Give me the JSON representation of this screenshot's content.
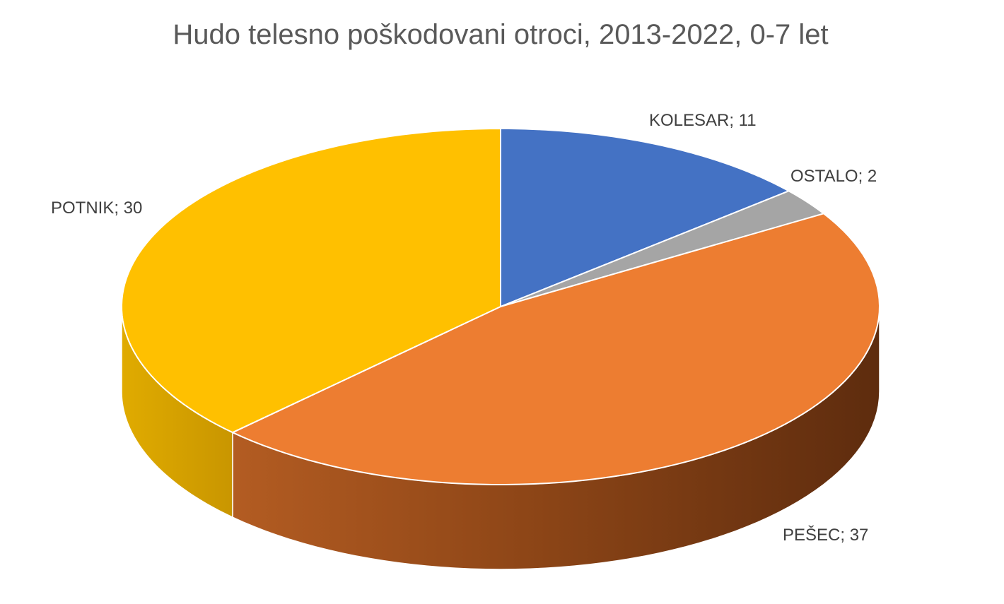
{
  "chart_data": {
    "type": "pie",
    "title": "Hudo telesno poškodovani otroci, 2013-2022, 0-7 let",
    "style": "3d",
    "start": "12 o'clock, clockwise",
    "slices": [
      {
        "label": "KOLESAR",
        "value": 11,
        "data_label": "KOLESAR; 11",
        "color": "#4472C4"
      },
      {
        "label": "OSTALO",
        "value": 2,
        "data_label": "OSTALO; 2",
        "color": "#A5A5A5"
      },
      {
        "label": "PEŠEC",
        "value": 37,
        "data_label": "PEŠEC; 37",
        "color": "#ED7D31"
      },
      {
        "label": "POTNIK",
        "value": 30,
        "data_label": "POTNIK; 30",
        "color": "#FFC000"
      }
    ],
    "legend": "none"
  }
}
